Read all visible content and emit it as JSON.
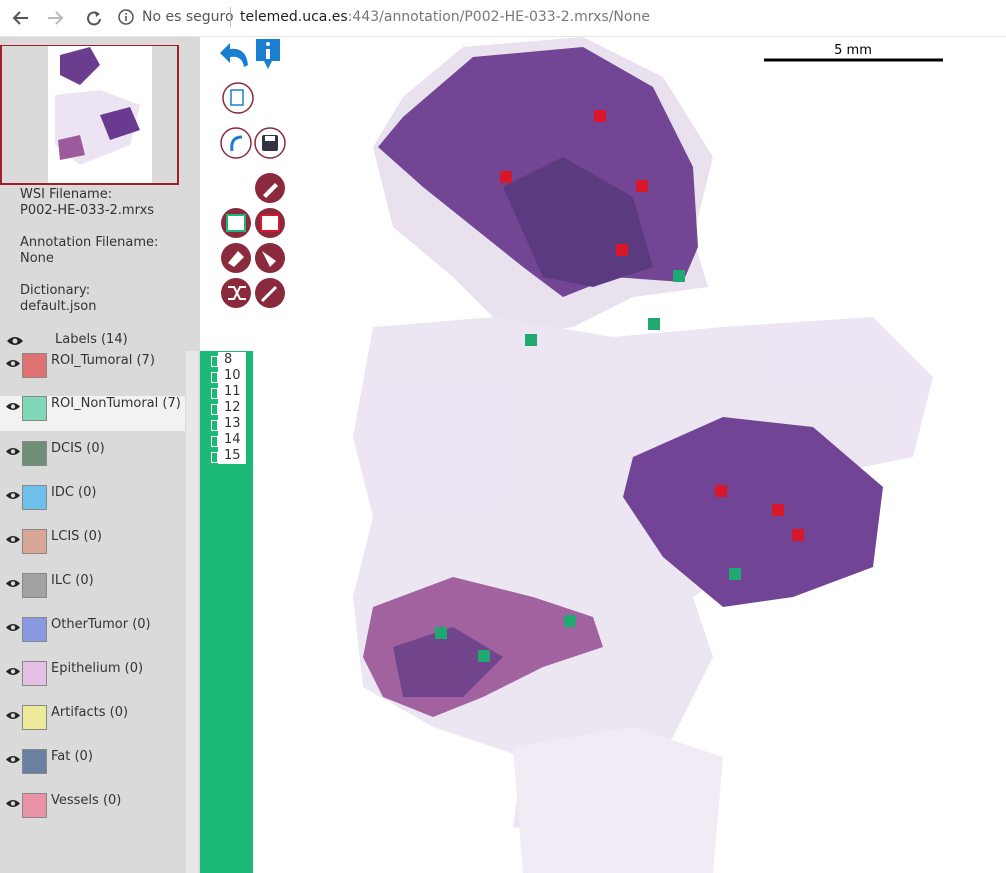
{
  "browser": {
    "security": "No es seguro",
    "host": "telemed.uca.es",
    "path": ":443/annotation/P002-HE-033-2.mrxs/None"
  },
  "viewer": {
    "scale_bar": "5 mm"
  },
  "sidebar": {
    "info": [
      {
        "label": "WSI Filename:",
        "value": "P002-HE-033-2.mrxs"
      },
      {
        "label": "Annotation Filename:",
        "value": "None"
      },
      {
        "label": "Dictionary:",
        "value": "default.json"
      }
    ],
    "labels_header": "Labels (14)",
    "labels": [
      {
        "name": "ROI_Tumoral (7)",
        "color": "#e07272"
      },
      {
        "name": "ROI_NonTumoral (7)",
        "color": "#80d8b6"
      },
      {
        "name": "DCIS (0)",
        "color": "#6e8f76"
      },
      {
        "name": "IDC (0)",
        "color": "#6cc0ea"
      },
      {
        "name": "LCIS (0)",
        "color": "#d8a796"
      },
      {
        "name": "ILC (0)",
        "color": "#a2a2a2"
      },
      {
        "name": "OtherTumor (0)",
        "color": "#8899e2"
      },
      {
        "name": "Epithelium (0)",
        "color": "#e4bfe6"
      },
      {
        "name": "Artifacts (0)",
        "color": "#eeea9c"
      },
      {
        "name": "Fat (0)",
        "color": "#6a80a2"
      },
      {
        "name": "Vessels (0)",
        "color": "#ea92a8"
      }
    ]
  },
  "id_list": [
    8,
    10,
    11,
    12,
    13,
    14,
    15
  ]
}
